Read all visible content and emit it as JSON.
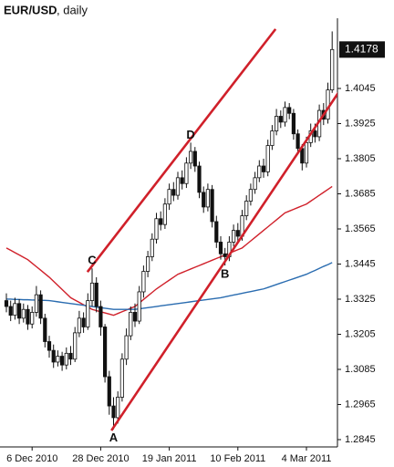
{
  "chart_data": {
    "type": "candlestick",
    "title": "EUR/USD",
    "subtitle": ", daily",
    "categories": [
      null,
      null,
      null,
      null,
      null,
      null,
      "6 Dec 2010",
      null,
      null,
      null,
      null,
      null,
      null,
      null,
      null,
      null,
      null,
      null,
      null,
      null,
      null,
      null,
      "28 Dec 2010",
      null,
      null,
      null,
      null,
      null,
      null,
      null,
      null,
      null,
      null,
      null,
      null,
      null,
      null,
      null,
      "19 Jan 2011",
      null,
      null,
      null,
      null,
      null,
      null,
      null,
      null,
      null,
      null,
      null,
      null,
      null,
      null,
      null,
      "10 Feb 2011",
      null,
      null,
      null,
      null,
      null,
      null,
      null,
      null,
      null,
      null,
      null,
      null,
      null,
      null,
      null,
      "4 Mar 2011",
      null,
      null,
      null,
      null,
      null,
      null
    ],
    "candles": {
      "open": [
        1.332,
        1.33,
        1.327,
        1.331,
        1.326,
        1.329,
        1.324,
        1.328,
        1.334,
        1.326,
        1.318,
        1.315,
        1.311,
        1.313,
        1.31,
        1.314,
        1.312,
        1.321,
        1.326,
        1.323,
        1.332,
        1.338,
        1.33,
        1.323,
        1.306,
        1.296,
        1.292,
        1.299,
        1.312,
        1.32,
        1.328,
        1.325,
        1.335,
        1.342,
        1.347,
        1.353,
        1.36,
        1.358,
        1.365,
        1.37,
        1.368,
        1.374,
        1.372,
        1.379,
        1.383,
        1.378,
        1.369,
        1.364,
        1.37,
        1.359,
        1.352,
        1.348,
        1.347,
        1.352,
        1.356,
        1.354,
        1.361,
        1.366,
        1.37,
        1.374,
        1.378,
        1.376,
        1.385,
        1.39,
        1.395,
        1.393,
        1.398,
        1.396,
        1.389,
        1.384,
        1.379,
        1.386,
        1.39,
        1.388,
        1.397,
        1.394,
        1.404
      ],
      "high": [
        1.3345,
        1.332,
        1.333,
        1.3325,
        1.331,
        1.3305,
        1.33,
        1.337,
        1.3355,
        1.3275,
        1.32,
        1.317,
        1.315,
        1.3145,
        1.316,
        1.3165,
        1.323,
        1.3285,
        1.328,
        1.3345,
        1.343,
        1.34,
        1.332,
        1.324,
        1.308,
        1.299,
        1.301,
        1.314,
        1.3225,
        1.33,
        1.331,
        1.337,
        1.344,
        1.349,
        1.355,
        1.362,
        1.3625,
        1.367,
        1.372,
        1.3725,
        1.376,
        1.3765,
        1.381,
        1.386,
        1.3845,
        1.3795,
        1.371,
        1.372,
        1.3715,
        1.361,
        1.354,
        1.35,
        1.354,
        1.358,
        1.3585,
        1.363,
        1.368,
        1.372,
        1.376,
        1.38,
        1.3805,
        1.387,
        1.392,
        1.3975,
        1.397,
        1.4,
        1.3995,
        1.3975,
        1.3905,
        1.3855,
        1.388,
        1.3925,
        1.3925,
        1.399,
        1.3995,
        1.4065,
        1.424
      ],
      "low": [
        1.328,
        1.325,
        1.3255,
        1.324,
        1.3245,
        1.322,
        1.3225,
        1.3265,
        1.324,
        1.316,
        1.3125,
        1.309,
        1.3095,
        1.308,
        1.3085,
        1.31,
        1.311,
        1.3195,
        1.321,
        1.322,
        1.33,
        1.328,
        1.32,
        1.304,
        1.293,
        1.288,
        1.29,
        1.2975,
        1.31,
        1.3185,
        1.323,
        1.324,
        1.333,
        1.34,
        1.3455,
        1.3515,
        1.356,
        1.3565,
        1.363,
        1.366,
        1.3665,
        1.37,
        1.3705,
        1.377,
        1.376,
        1.367,
        1.362,
        1.3625,
        1.357,
        1.35,
        1.346,
        1.344,
        1.3455,
        1.3505,
        1.352,
        1.3525,
        1.3595,
        1.3645,
        1.3685,
        1.3725,
        1.374,
        1.3745,
        1.3835,
        1.3885,
        1.391,
        1.3915,
        1.394,
        1.387,
        1.382,
        1.3765,
        1.3775,
        1.3845,
        1.386,
        1.3865,
        1.392,
        1.3925,
        1.403
      ],
      "close": [
        1.33,
        1.327,
        1.331,
        1.326,
        1.329,
        1.324,
        1.328,
        1.334,
        1.326,
        1.318,
        1.315,
        1.311,
        1.313,
        1.31,
        1.314,
        1.312,
        1.321,
        1.326,
        1.323,
        1.332,
        1.338,
        1.33,
        1.323,
        1.306,
        1.296,
        1.292,
        1.299,
        1.312,
        1.32,
        1.328,
        1.325,
        1.335,
        1.342,
        1.347,
        1.353,
        1.36,
        1.358,
        1.365,
        1.37,
        1.368,
        1.374,
        1.372,
        1.379,
        1.383,
        1.378,
        1.369,
        1.364,
        1.37,
        1.359,
        1.352,
        1.348,
        1.347,
        1.352,
        1.356,
        1.354,
        1.361,
        1.366,
        1.37,
        1.374,
        1.378,
        1.376,
        1.385,
        1.39,
        1.395,
        1.393,
        1.398,
        1.396,
        1.389,
        1.384,
        1.379,
        1.386,
        1.39,
        1.388,
        1.397,
        1.394,
        1.404,
        1.4178
      ]
    },
    "series": [
      {
        "color": "#d0202a",
        "values": [
          1.35,
          1.3492,
          1.3484,
          1.3476,
          1.3468,
          1.346,
          1.3448,
          1.3436,
          1.3424,
          1.3412,
          1.34,
          1.3386,
          1.3372,
          1.3358,
          1.3344,
          1.333,
          1.3322,
          1.3314,
          1.3306,
          1.3298,
          1.329,
          1.3286,
          1.3282,
          1.3278,
          1.3274,
          1.327,
          1.3276,
          1.3282,
          1.3288,
          1.3294,
          1.33,
          1.3312,
          1.3324,
          1.3336,
          1.3348,
          1.336,
          1.337,
          1.338,
          1.339,
          1.34,
          1.341,
          1.3416,
          1.3422,
          1.3428,
          1.3434,
          1.344,
          1.3446,
          1.3452,
          1.3458,
          1.3464,
          1.347,
          1.3476,
          1.3482,
          1.3488,
          1.3494,
          1.35,
          1.3512,
          1.3524,
          1.3536,
          1.3548,
          1.356,
          1.3572,
          1.3584,
          1.3596,
          1.3608,
          1.362,
          1.3626,
          1.3632,
          1.3638,
          1.3644,
          1.365,
          1.366,
          1.367,
          1.368,
          1.369,
          1.37,
          1.371
        ]
      },
      {
        "color": "#2a6cb0",
        "values": [
          1.3325,
          1.3325,
          1.3324,
          1.3324,
          1.3323,
          1.3323,
          1.3322,
          1.3322,
          1.3321,
          1.3321,
          1.332,
          1.3318,
          1.3316,
          1.3314,
          1.3312,
          1.331,
          1.3308,
          1.3306,
          1.3304,
          1.3302,
          1.33,
          1.3298,
          1.3296,
          1.3294,
          1.3292,
          1.329,
          1.329,
          1.329,
          1.329,
          1.329,
          1.329,
          1.3292,
          1.3294,
          1.3296,
          1.3298,
          1.33,
          1.3302,
          1.3304,
          1.3306,
          1.3308,
          1.331,
          1.3312,
          1.3314,
          1.3316,
          1.3318,
          1.332,
          1.3322,
          1.3324,
          1.3326,
          1.3328,
          1.333,
          1.3333,
          1.3336,
          1.3339,
          1.3342,
          1.3345,
          1.3348,
          1.3351,
          1.3354,
          1.3357,
          1.336,
          1.3365,
          1.337,
          1.3375,
          1.338,
          1.3385,
          1.339,
          1.3395,
          1.34,
          1.3405,
          1.341,
          1.3417,
          1.3423,
          1.343,
          1.3437,
          1.3443,
          1.345
        ]
      }
    ],
    "trendlines": [
      {
        "color": "#d0202a",
        "x": [
          24.5,
          77.7
        ],
        "values": [
          1.2876,
          1.4036
        ]
      },
      {
        "color": "#d0202a",
        "x": [
          18.9,
          62.8
        ],
        "values": [
          1.3418,
          1.4248
        ]
      }
    ],
    "annotations": [
      {
        "text": "C",
        "at": 20,
        "side": "high"
      },
      {
        "text": "A",
        "at": 25,
        "side": "low"
      },
      {
        "text": "D",
        "at": 43,
        "side": "high"
      },
      {
        "text": "B",
        "at": 51,
        "side": "low"
      }
    ],
    "ylim": [
      1.282,
      1.4285
    ],
    "yticks": [
      1.4045,
      1.3925,
      1.3805,
      1.3685,
      1.3565,
      1.3445,
      1.3325,
      1.3205,
      1.3085,
      1.2965,
      1.2845
    ],
    "up_color": "#ffffff",
    "down_color": "#111111",
    "last_price_color": "#111111"
  }
}
